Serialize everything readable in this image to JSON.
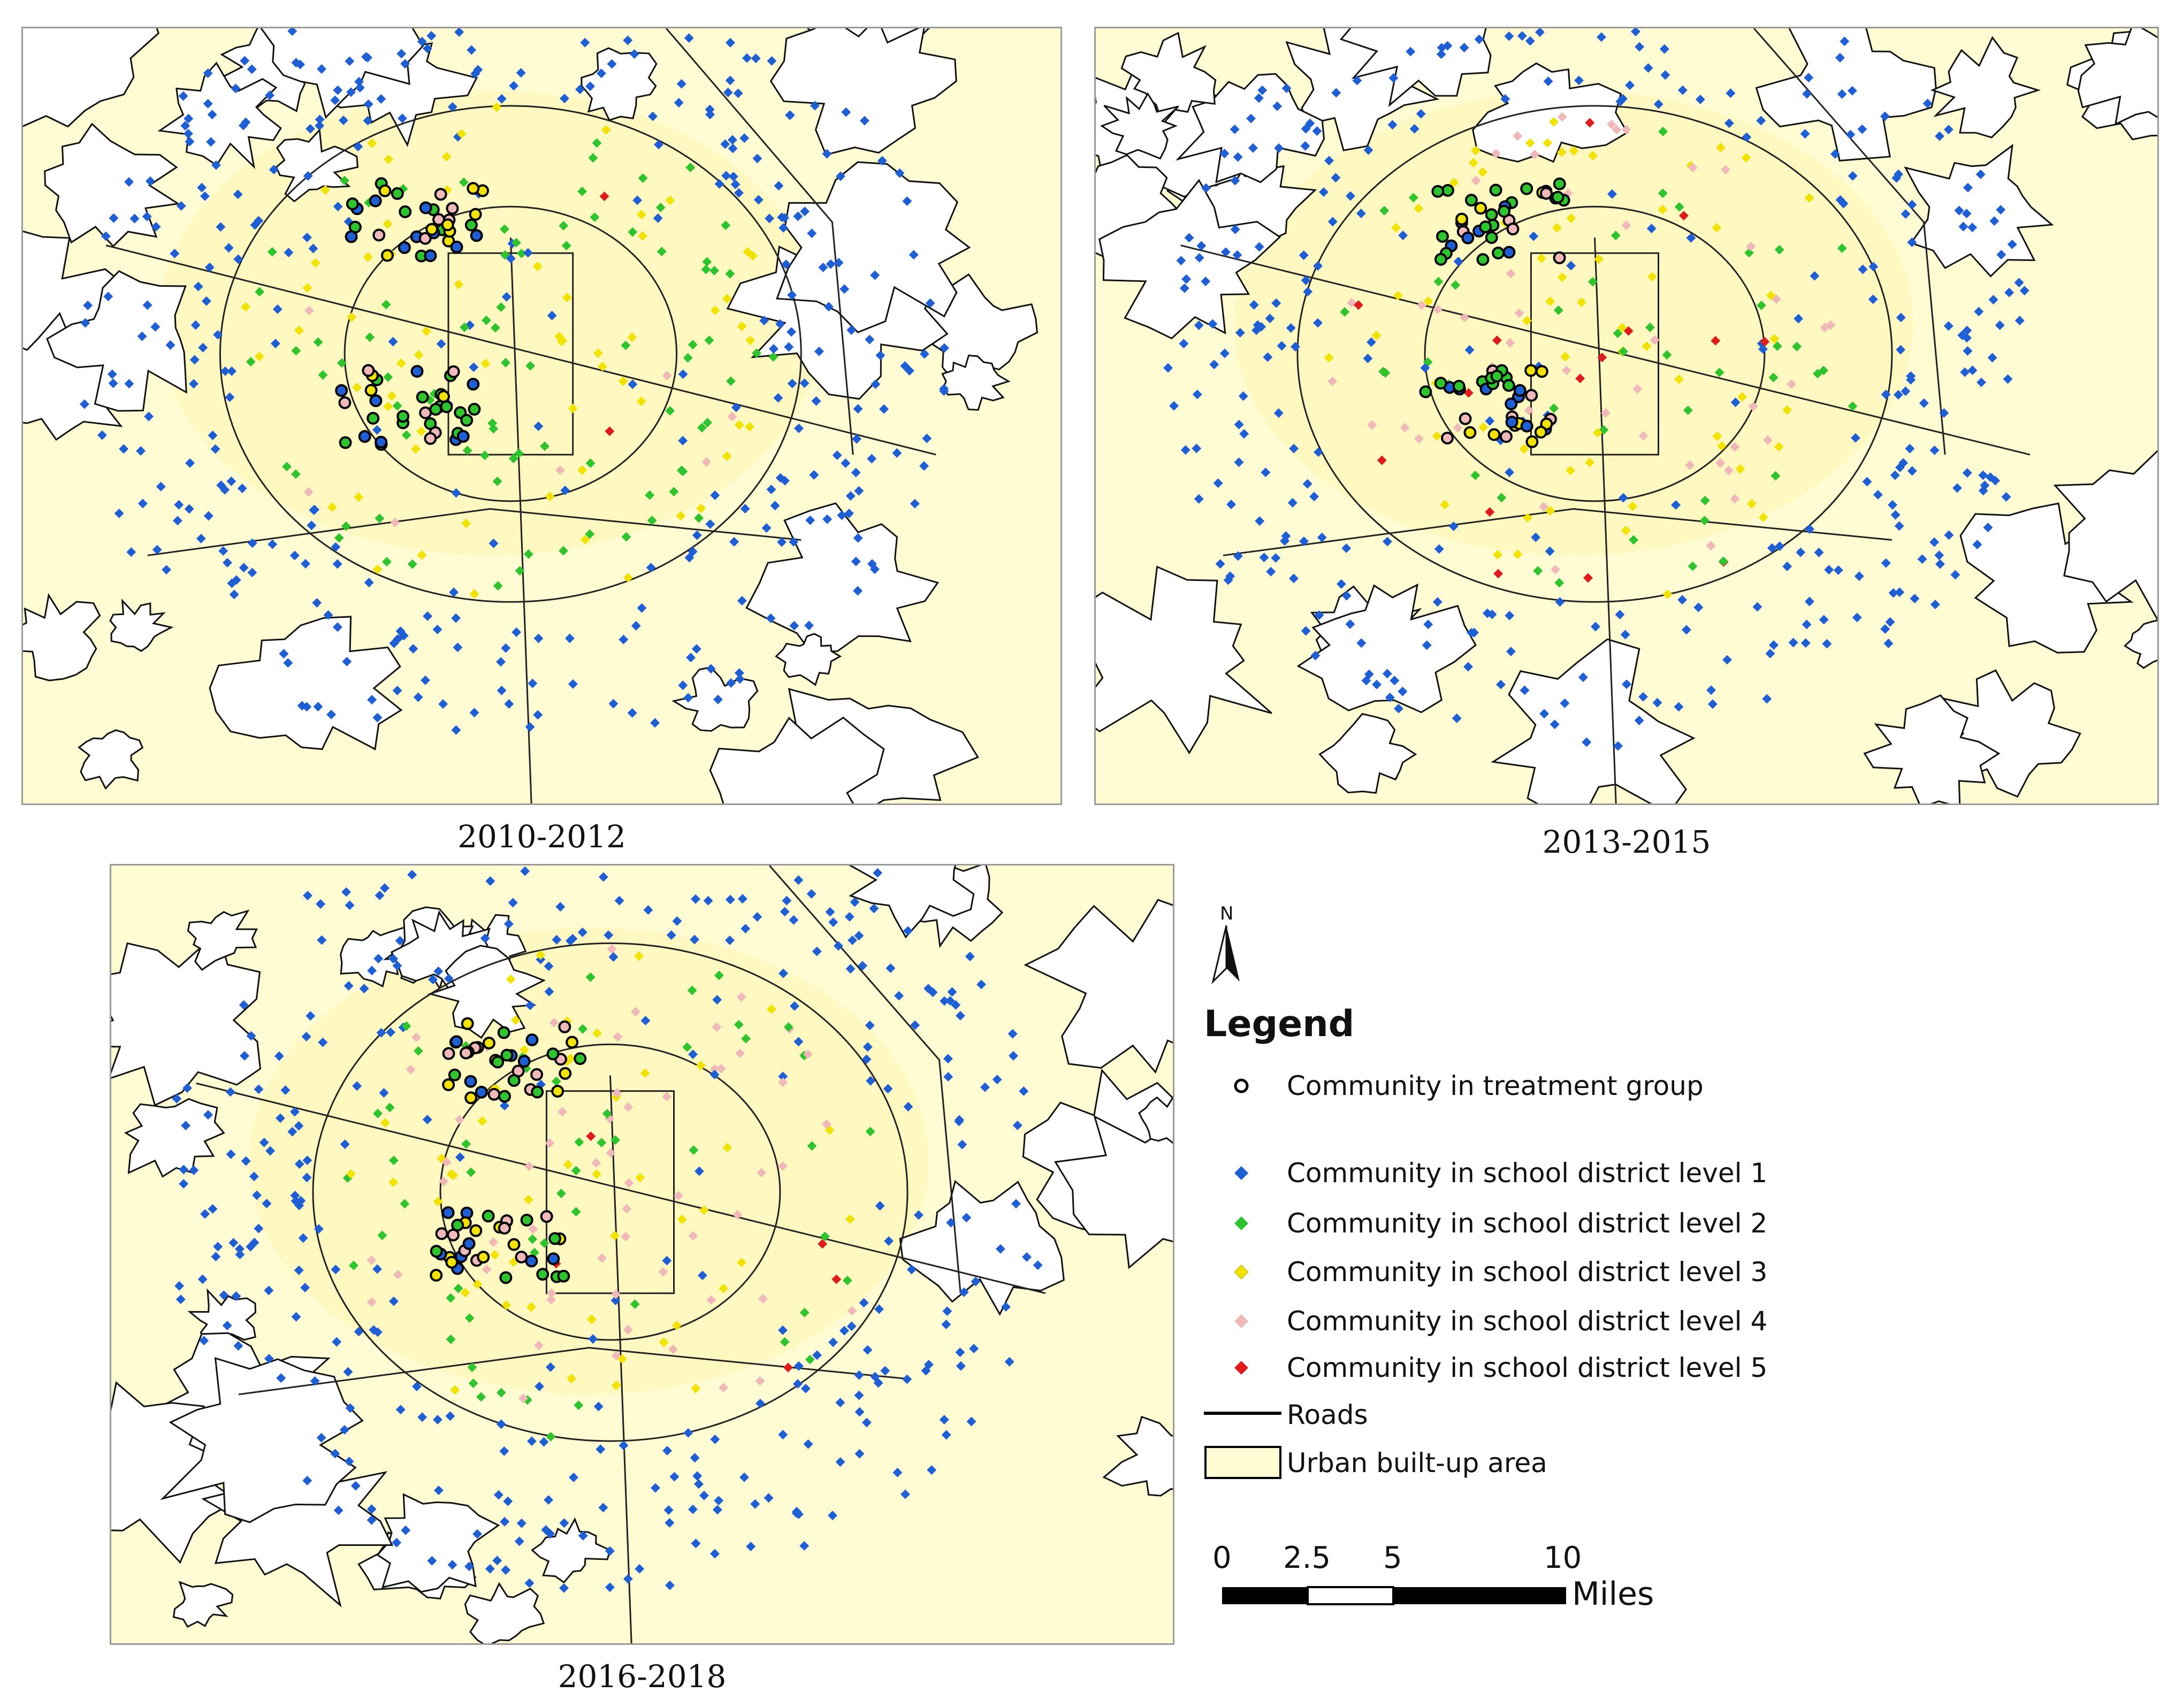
{
  "panels": [
    {
      "caption": "2010-2012"
    },
    {
      "caption": "2013-2015"
    },
    {
      "caption": "2016-2018"
    }
  ],
  "north_arrow": {
    "letter": "N"
  },
  "legend": {
    "title": "Legend",
    "items": [
      {
        "label": "Community in treatment group",
        "symbol": "hollow-circle",
        "color": "#000000"
      },
      {
        "label": "Community in school district level 1",
        "symbol": "diamond",
        "color": "#1f5fd6"
      },
      {
        "label": "Community in school district level 2",
        "symbol": "diamond",
        "color": "#2ec42e"
      },
      {
        "label": "Community in school district level 3",
        "symbol": "diamond",
        "color": "#f2e200"
      },
      {
        "label": "Community in school district level 4",
        "symbol": "diamond",
        "color": "#f0b8b8"
      },
      {
        "label": "Community in school district level 5",
        "symbol": "diamond",
        "color": "#e01b1b"
      },
      {
        "label": "Roads",
        "symbol": "line",
        "color": "#000000"
      },
      {
        "label": "Urban built-up area",
        "symbol": "area",
        "color": "#fffbd2"
      }
    ]
  },
  "scale_bar": {
    "ticks": [
      "0",
      "2.5",
      "5",
      "10"
    ],
    "units": "Miles"
  },
  "colors": {
    "built_up": "#fffbd2",
    "built_up_core": "#fff6b5",
    "level1": "#1f5fd6",
    "level2": "#2ec42e",
    "level3": "#f2e200",
    "level4": "#f0b8b8",
    "level5": "#e01b1b",
    "treatment": "#000000"
  }
}
